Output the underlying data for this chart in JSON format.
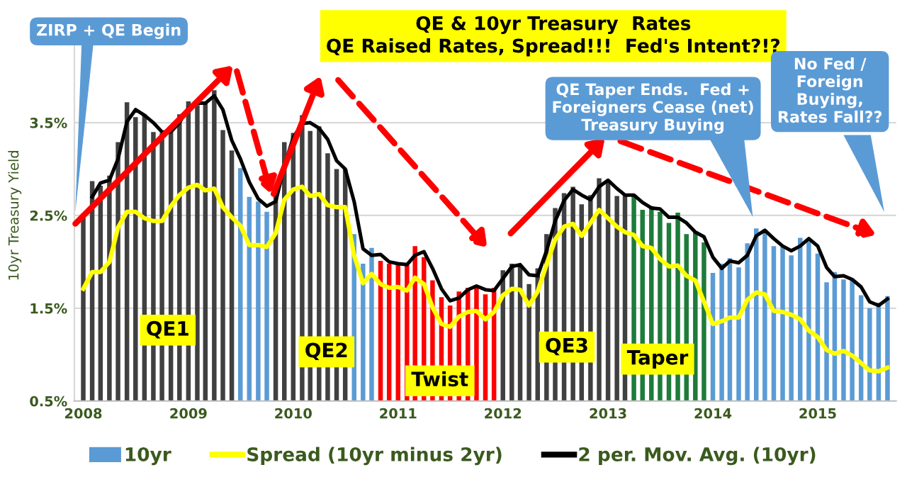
{
  "chart_data": {
    "type": "bar",
    "title": "QE & 10yr Treasury  Rates\nQE Raised Rates, Spread!!!  Fed's Intent?!?",
    "ylabel": "10yr Treasury Yield",
    "x": [
      "2008-01",
      "2008-02",
      "2008-03",
      "2008-04",
      "2008-05",
      "2008-06",
      "2008-07",
      "2008-08",
      "2008-09",
      "2008-10",
      "2008-11",
      "2008-12",
      "2009-01",
      "2009-02",
      "2009-03",
      "2009-04",
      "2009-05",
      "2009-06",
      "2009-07",
      "2009-08",
      "2009-09",
      "2009-10",
      "2009-11",
      "2009-12",
      "2010-01",
      "2010-02",
      "2010-03",
      "2010-04",
      "2010-05",
      "2010-06",
      "2010-07",
      "2010-08",
      "2010-09",
      "2010-10",
      "2010-11",
      "2010-12",
      "2011-01",
      "2011-02",
      "2011-03",
      "2011-04",
      "2011-05",
      "2011-06",
      "2011-07",
      "2011-08",
      "2011-09",
      "2011-10",
      "2011-11",
      "2011-12",
      "2012-01",
      "2012-02",
      "2012-03",
      "2012-04",
      "2012-05",
      "2012-06",
      "2012-07",
      "2012-08",
      "2012-09",
      "2012-10",
      "2012-11",
      "2012-12",
      "2013-01",
      "2013-02",
      "2013-03",
      "2013-04",
      "2013-05",
      "2013-06",
      "2013-07",
      "2013-08",
      "2013-09",
      "2013-10",
      "2013-11",
      "2013-12",
      "2014-01",
      "2014-02",
      "2014-03",
      "2014-04",
      "2014-05",
      "2014-06",
      "2014-07",
      "2014-08",
      "2014-09",
      "2014-10",
      "2014-11",
      "2014-12",
      "2015-01",
      "2015-02",
      "2015-03",
      "2015-04",
      "2015-05",
      "2015-06",
      "2015-07",
      "2015-08",
      "2015-09"
    ],
    "series": [
      {
        "name": "10yr",
        "color": "#5b9bd5",
        "values": [
          2.52,
          2.87,
          2.82,
          2.93,
          3.29,
          3.72,
          3.56,
          3.59,
          3.4,
          3.39,
          3.4,
          3.59,
          3.73,
          3.69,
          3.73,
          3.85,
          3.42,
          3.2,
          3.01,
          2.7,
          2.65,
          2.54,
          2.76,
          3.29,
          3.39,
          3.58,
          3.41,
          3.46,
          3.17,
          3.0,
          3.0,
          2.3,
          1.98,
          2.15,
          2.01,
          1.98,
          1.97,
          1.97,
          2.17,
          2.05,
          1.8,
          1.62,
          1.53,
          1.68,
          1.72,
          1.75,
          1.65,
          1.72,
          1.91,
          1.98,
          1.96,
          1.76,
          1.93,
          2.3,
          2.58,
          2.74,
          2.81,
          2.62,
          2.72,
          2.9,
          2.86,
          2.71,
          2.72,
          2.71,
          2.56,
          2.6,
          2.54,
          2.42,
          2.53,
          2.3,
          2.33,
          2.21,
          1.88,
          1.98,
          2.04,
          1.94,
          2.2,
          2.36,
          2.32,
          2.17,
          2.17,
          2.07,
          2.26,
          2.24,
          2.09,
          1.78,
          1.89,
          1.81,
          1.81,
          1.64,
          1.5,
          1.56,
          1.63
        ],
        "colors": [
          "#404040",
          "#404040",
          "#404040",
          "#404040",
          "#404040",
          "#404040",
          "#404040",
          "#404040",
          "#404040",
          "#404040",
          "#404040",
          "#404040",
          "#404040",
          "#404040",
          "#404040",
          "#404040",
          "#404040",
          "#404040",
          "#5b9bd5",
          "#5b9bd5",
          "#5b9bd5",
          "#5b9bd5",
          "#404040",
          "#404040",
          "#404040",
          "#404040",
          "#404040",
          "#404040",
          "#404040",
          "#404040",
          "#404040",
          "#5b9bd5",
          "#5b9bd5",
          "#5b9bd5",
          "#ff0000",
          "#ff0000",
          "#ff0000",
          "#ff0000",
          "#ff0000",
          "#ff0000",
          "#ff0000",
          "#ff0000",
          "#ff0000",
          "#ff0000",
          "#ff0000",
          "#ff0000",
          "#ff0000",
          "#ff0000",
          "#404040",
          "#404040",
          "#404040",
          "#404040",
          "#404040",
          "#404040",
          "#404040",
          "#404040",
          "#404040",
          "#404040",
          "#404040",
          "#404040",
          "#404040",
          "#404040",
          "#404040",
          "#1e7b3a",
          "#1e7b3a",
          "#1e7b3a",
          "#1e7b3a",
          "#1e7b3a",
          "#1e7b3a",
          "#1e7b3a",
          "#1e7b3a",
          "#1e7b3a",
          "#5b9bd5",
          "#5b9bd5",
          "#5b9bd5",
          "#5b9bd5",
          "#5b9bd5",
          "#5b9bd5",
          "#5b9bd5",
          "#5b9bd5",
          "#5b9bd5",
          "#5b9bd5",
          "#5b9bd5",
          "#5b9bd5",
          "#5b9bd5",
          "#5b9bd5",
          "#5b9bd5",
          "#5b9bd5",
          "#5b9bd5",
          "#5b9bd5",
          "#5b9bd5",
          "#5b9bd5",
          "#5b9bd5"
        ]
      },
      {
        "name": "Spread (10yr minus 2yr)",
        "type": "line",
        "color": "#ffff00",
        "values": [
          1.71,
          1.89,
          1.89,
          2.0,
          2.37,
          2.54,
          2.54,
          2.47,
          2.44,
          2.44,
          2.6,
          2.72,
          2.8,
          2.83,
          2.77,
          2.79,
          2.59,
          2.48,
          2.39,
          2.18,
          2.18,
          2.16,
          2.31,
          2.67,
          2.78,
          2.81,
          2.71,
          2.73,
          2.61,
          2.59,
          2.59,
          2.07,
          1.77,
          1.87,
          1.76,
          1.72,
          1.73,
          1.69,
          1.83,
          1.76,
          1.51,
          1.33,
          1.3,
          1.41,
          1.46,
          1.47,
          1.38,
          1.46,
          1.64,
          1.71,
          1.7,
          1.53,
          1.68,
          1.97,
          2.24,
          2.38,
          2.41,
          2.28,
          2.42,
          2.56,
          2.47,
          2.38,
          2.32,
          2.29,
          2.17,
          2.15,
          2.03,
          1.95,
          1.96,
          1.85,
          1.8,
          1.57,
          1.33,
          1.36,
          1.4,
          1.4,
          1.59,
          1.67,
          1.65,
          1.47,
          1.46,
          1.43,
          1.38,
          1.26,
          1.19,
          1.05,
          1.01,
          1.04,
          0.99,
          0.91,
          0.83,
          0.82,
          0.86
        ]
      },
      {
        "name": "2 per. Mov. Avg. (10yr)",
        "type": "line",
        "color": "#000000",
        "values": [
          null,
          2.7,
          2.85,
          2.88,
          3.11,
          3.51,
          3.64,
          3.58,
          3.5,
          3.4,
          3.4,
          3.5,
          3.66,
          3.71,
          3.71,
          3.79,
          3.64,
          3.31,
          3.11,
          2.86,
          2.68,
          2.6,
          2.65,
          3.03,
          3.34,
          3.49,
          3.5,
          3.44,
          3.32,
          3.09,
          3.0,
          2.65,
          2.14,
          2.07,
          2.08,
          2.0,
          1.98,
          1.97,
          2.07,
          2.11,
          1.93,
          1.71,
          1.58,
          1.61,
          1.7,
          1.74,
          1.7,
          1.69,
          1.82,
          1.95,
          1.97,
          1.86,
          1.85,
          2.12,
          2.44,
          2.66,
          2.78,
          2.72,
          2.67,
          2.81,
          2.88,
          2.79,
          2.72,
          2.72,
          2.64,
          2.58,
          2.57,
          2.48,
          2.48,
          2.42,
          2.32,
          2.27,
          2.05,
          1.93,
          2.01,
          1.99,
          2.07,
          2.28,
          2.34,
          2.25,
          2.17,
          2.12,
          2.17,
          2.25,
          2.17,
          1.94,
          1.84,
          1.85,
          1.81,
          1.73,
          1.57,
          1.53,
          1.6
        ]
      }
    ],
    "xlim": [
      "2007-12-01",
      "2015-10-01"
    ],
    "xticks": [
      {
        "value": "2008-01",
        "label": "2008"
      },
      {
        "value": "2009-01",
        "label": "2009"
      },
      {
        "value": "2010-01",
        "label": "2010"
      },
      {
        "value": "2011-01",
        "label": "2011"
      },
      {
        "value": "2012-01",
        "label": "2012"
      },
      {
        "value": "2013-01",
        "label": "2013"
      },
      {
        "value": "2014-01",
        "label": "2014"
      },
      {
        "value": "2015-01",
        "label": "2015"
      }
    ],
    "ylim": [
      0.5,
      4.5
    ],
    "yticks": [
      {
        "value": 0.5,
        "label": "0.5%"
      },
      {
        "value": 1.5,
        "label": "1.5%"
      },
      {
        "value": 2.5,
        "label": "2.5%"
      },
      {
        "value": 3.5,
        "label": "3.5%"
      }
    ],
    "grid": "y",
    "legend": "bottom",
    "annotations": [
      "ZIRP + QE Begin",
      "QE1",
      "QE2",
      "Twist",
      "QE3",
      "Taper",
      "QE Taper Ends.  Fed +\nForeigners Cease (net)\nTreasury Buying",
      "No Fed /\nForeign\nBuying,\nRates Fall??"
    ]
  }
}
